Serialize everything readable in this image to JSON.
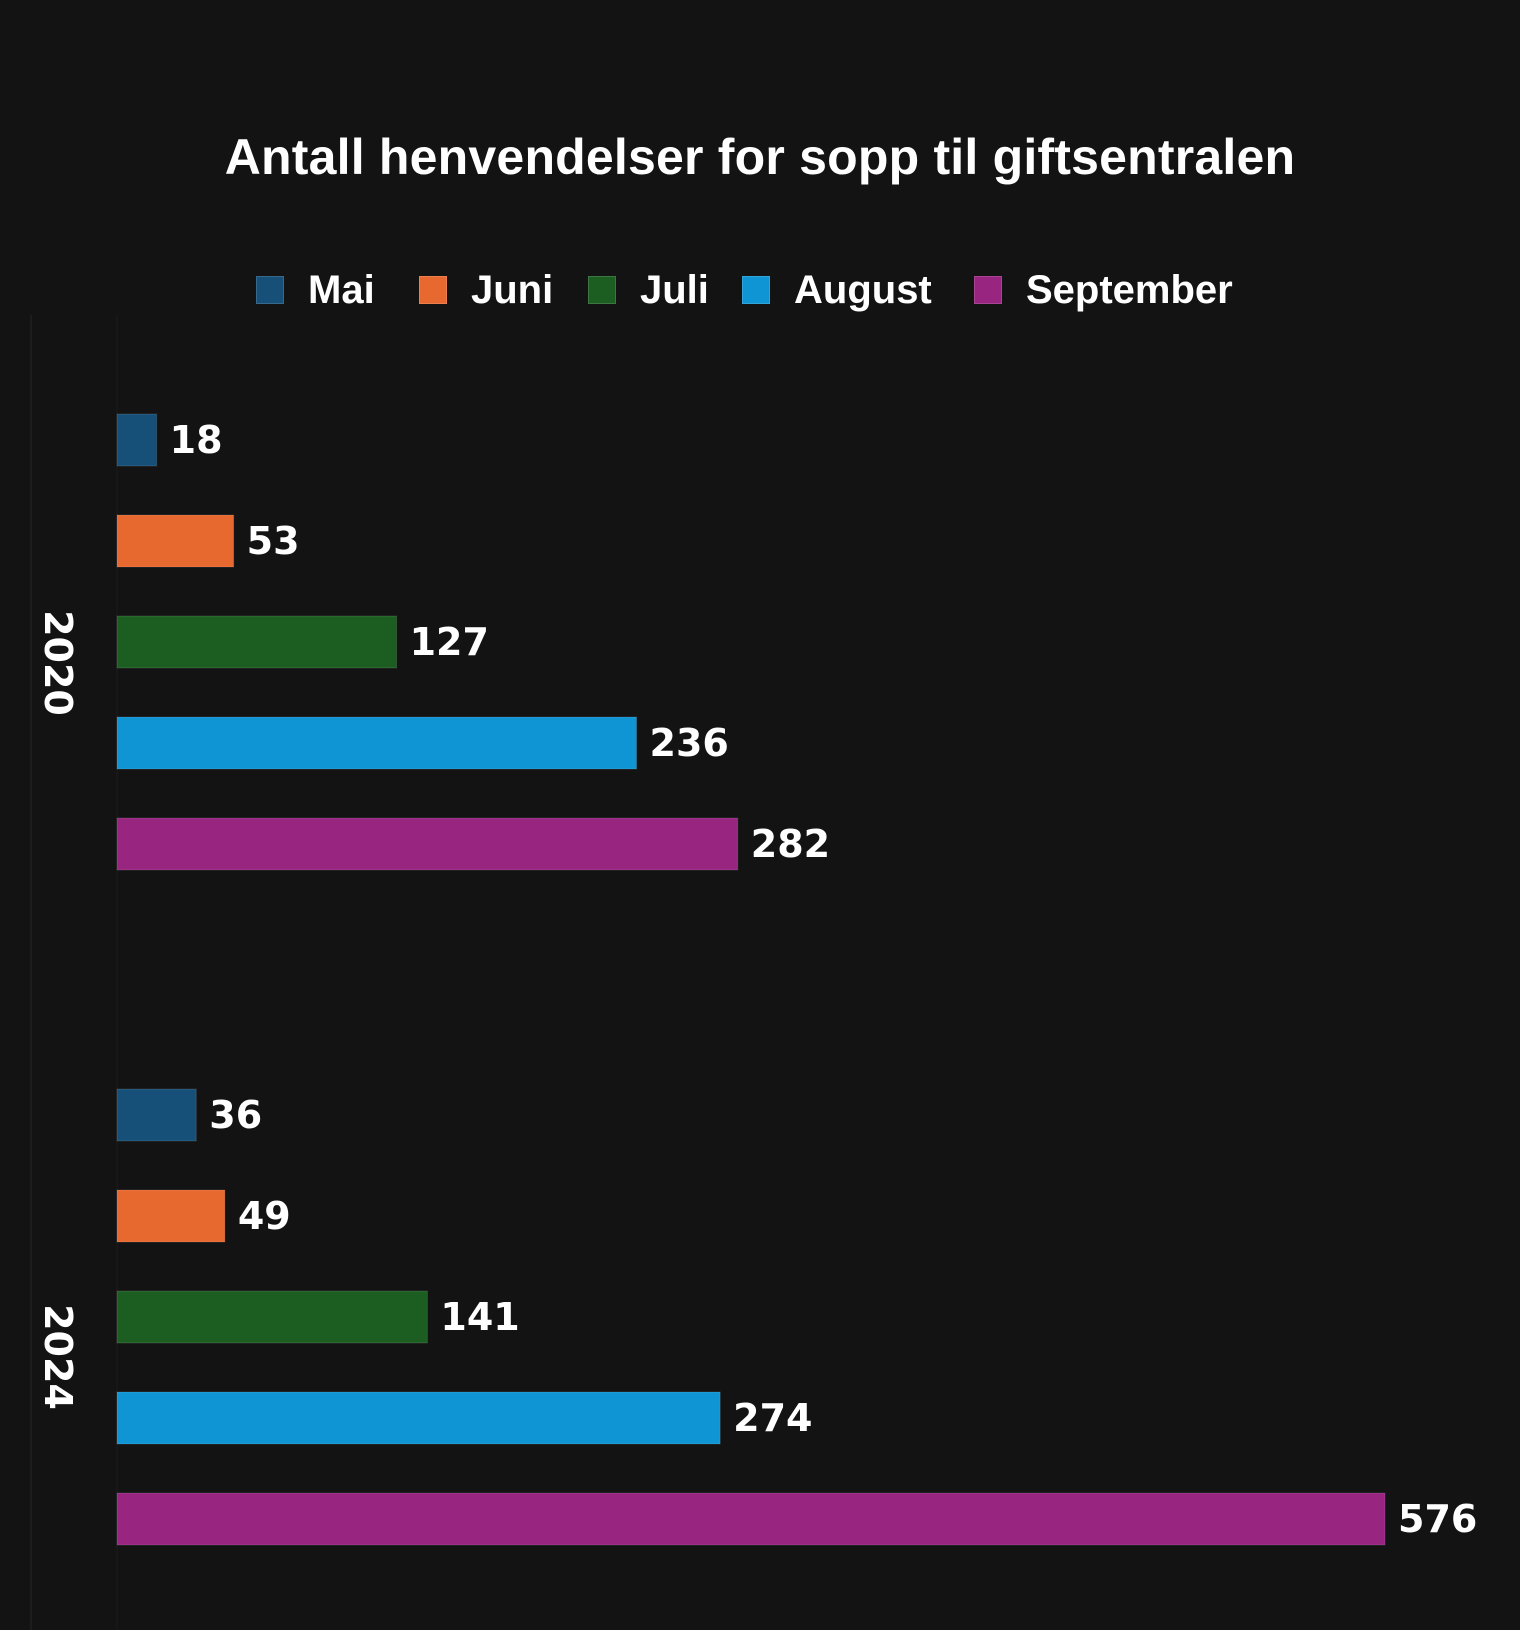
{
  "chart_data": {
    "type": "bar",
    "orientation": "horizontal",
    "title": "Antall henvendelser for sopp til giftsentralen",
    "categories": [
      "2020",
      "2024"
    ],
    "series": [
      {
        "name": "Mai",
        "color": "#164f78",
        "values": [
          18,
          36
        ]
      },
      {
        "name": "Juni",
        "color": "#e8692f",
        "values": [
          53,
          49
        ]
      },
      {
        "name": "Juli",
        "color": "#1c5e22",
        "values": [
          127,
          141
        ]
      },
      {
        "name": "August",
        "color": "#0f95d3",
        "values": [
          236,
          274
        ]
      },
      {
        "name": "September",
        "color": "#982580",
        "values": [
          282,
          576
        ]
      }
    ],
    "xlim": [
      0,
      576
    ],
    "grid": false,
    "legend_position": "top",
    "data_labels": true
  },
  "colors": {
    "background": "#131313",
    "text": "#ffffff"
  }
}
